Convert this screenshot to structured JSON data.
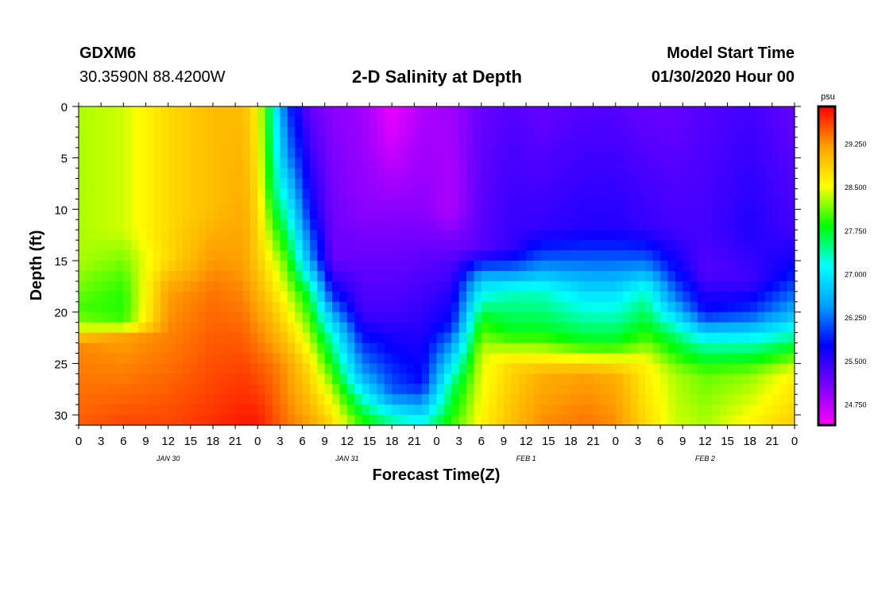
{
  "header": {
    "station_id": "GDXM6",
    "coordinates": "30.3590N 88.4200W",
    "title": "2-D Salinity at Depth",
    "model_start_label": "Model Start Time",
    "model_start_value": "01/30/2020 Hour 00"
  },
  "chart_data": {
    "type": "heatmap",
    "title": "2-D Salinity at Depth",
    "xlabel": "Forecast Time(Z)",
    "ylabel": "Depth (ft)",
    "x_hours": [
      0,
      96
    ],
    "x_tick_labels": [
      "0",
      "3",
      "6",
      "9",
      "12",
      "15",
      "18",
      "21",
      "0",
      "3",
      "6",
      "9",
      "12",
      "15",
      "18",
      "21",
      "0",
      "3",
      "6",
      "9",
      "12",
      "15",
      "18",
      "21",
      "0",
      "3",
      "6",
      "9",
      "12",
      "15",
      "18",
      "21",
      "0"
    ],
    "date_labels": [
      {
        "hour": 12,
        "text": "JAN 30"
      },
      {
        "hour": 36,
        "text": "JAN 31"
      },
      {
        "hour": 60,
        "text": "FEB 1"
      },
      {
        "hour": 84,
        "text": "FEB 2"
      }
    ],
    "ylim": [
      0,
      31
    ],
    "y_ticks": [
      0,
      5,
      10,
      15,
      20,
      25,
      30
    ],
    "colorbar": {
      "unit": "psu",
      "range": [
        24.4,
        29.9
      ],
      "tick_values": [
        29.25,
        28.5,
        27.75,
        27.0,
        26.25,
        25.5,
        24.75
      ],
      "tick_labels": [
        "29.250",
        "28.500",
        "27.750",
        "27.000",
        "26.250",
        "25.500",
        "24.750"
      ]
    },
    "salinity_profiles": [
      {
        "hour": 0,
        "depth": [
          0,
          15,
          20,
          21.5,
          23,
          31
        ],
        "psu": [
          28.3,
          28.3,
          28.0,
          28.4,
          29.3,
          29.5
        ]
      },
      {
        "hour": 6,
        "depth": [
          0,
          12,
          17,
          19,
          21,
          22.5,
          31
        ],
        "psu": [
          28.4,
          28.4,
          28.0,
          27.9,
          28.0,
          29.2,
          29.6
        ]
      },
      {
        "hour": 12,
        "depth": [
          0,
          15,
          18,
          31
        ],
        "psu": [
          28.8,
          28.8,
          29.2,
          29.6
        ]
      },
      {
        "hour": 18,
        "depth": [
          0,
          10,
          18,
          31
        ],
        "psu": [
          29.0,
          29.0,
          29.4,
          29.7
        ]
      },
      {
        "hour": 22,
        "depth": [
          0,
          15,
          25,
          31
        ],
        "psu": [
          29.0,
          29.2,
          29.6,
          29.8
        ]
      },
      {
        "hour": 24,
        "depth": [
          0,
          15,
          25,
          31
        ],
        "psu": [
          28.6,
          28.9,
          29.5,
          29.8
        ]
      },
      {
        "hour": 26,
        "depth": [
          0,
          8,
          15,
          25,
          31
        ],
        "psu": [
          27.3,
          27.6,
          28.5,
          29.4,
          29.6
        ]
      },
      {
        "hour": 28,
        "depth": [
          0,
          5,
          15,
          25,
          31
        ],
        "psu": [
          26.0,
          26.4,
          28.0,
          29.2,
          29.4
        ]
      },
      {
        "hour": 31,
        "depth": [
          0,
          10,
          15,
          18,
          25,
          31
        ],
        "psu": [
          25.2,
          25.8,
          26.5,
          27.6,
          28.7,
          29.2
        ]
      },
      {
        "hour": 34,
        "depth": [
          0,
          15,
          18,
          22,
          28,
          31
        ],
        "psu": [
          25.0,
          25.2,
          25.8,
          27.2,
          28.4,
          28.8
        ]
      },
      {
        "hour": 38,
        "depth": [
          0,
          10,
          20,
          26,
          29,
          31
        ],
        "psu": [
          24.9,
          25.0,
          25.4,
          26.5,
          27.5,
          28.0
        ]
      },
      {
        "hour": 42,
        "depth": [
          0,
          3,
          10,
          20,
          28,
          30,
          31
        ],
        "psu": [
          24.5,
          24.6,
          25.0,
          25.4,
          26.2,
          27.2,
          27.5
        ]
      },
      {
        "hour": 46,
        "depth": [
          0,
          10,
          20,
          27,
          29,
          31
        ],
        "psu": [
          24.8,
          25.0,
          25.5,
          25.8,
          26.5,
          27.3
        ]
      },
      {
        "hour": 50,
        "depth": [
          0,
          10,
          15,
          21,
          27,
          31
        ],
        "psu": [
          24.9,
          24.8,
          25.3,
          25.8,
          27.5,
          28.0
        ]
      },
      {
        "hour": 54,
        "depth": [
          0,
          14,
          17,
          21,
          24,
          31
        ],
        "psu": [
          25.2,
          25.3,
          26.8,
          27.9,
          28.4,
          28.6
        ]
      },
      {
        "hour": 58,
        "depth": [
          0,
          14,
          16,
          18,
          22,
          25,
          31
        ],
        "psu": [
          25.3,
          25.5,
          26.3,
          27.3,
          27.8,
          28.8,
          29.0
        ]
      },
      {
        "hour": 62,
        "depth": [
          0,
          12,
          15,
          18,
          22,
          26,
          31
        ],
        "psu": [
          25.2,
          25.5,
          26.2,
          27.3,
          27.8,
          29.1,
          29.3
        ]
      },
      {
        "hour": 68,
        "depth": [
          0,
          12,
          15,
          19,
          23,
          26,
          31
        ],
        "psu": [
          25.3,
          25.6,
          26.2,
          27.1,
          27.8,
          29.2,
          29.4
        ]
      },
      {
        "hour": 72,
        "depth": [
          0,
          12,
          15,
          19,
          23,
          26,
          31
        ],
        "psu": [
          25.3,
          25.6,
          26.2,
          27.1,
          27.8,
          29.1,
          29.3
        ]
      },
      {
        "hour": 76,
        "depth": [
          0,
          12,
          15,
          18,
          22,
          25,
          31
        ],
        "psu": [
          25.2,
          25.5,
          26.2,
          27.3,
          27.9,
          28.6,
          28.8
        ]
      },
      {
        "hour": 80,
        "depth": [
          0,
          12,
          16,
          19,
          22,
          26,
          31
        ],
        "psu": [
          25.2,
          25.4,
          25.8,
          26.4,
          27.5,
          28.3,
          28.4
        ]
      },
      {
        "hour": 84,
        "depth": [
          0,
          12,
          16,
          20,
          23,
          26,
          31
        ],
        "psu": [
          25.3,
          25.4,
          25.3,
          25.8,
          27.3,
          28.1,
          28.3
        ]
      },
      {
        "hour": 90,
        "depth": [
          0,
          12,
          17,
          20,
          23,
          26,
          31
        ],
        "psu": [
          25.4,
          25.6,
          25.4,
          26.0,
          27.3,
          28.2,
          28.6
        ]
      },
      {
        "hour": 96,
        "depth": [
          0,
          12,
          16,
          20,
          23,
          26,
          31
        ],
        "psu": [
          25.2,
          25.4,
          25.8,
          26.6,
          27.6,
          28.6,
          28.9
        ]
      }
    ]
  },
  "colors": {
    "palette": [
      "#ff00ff",
      "#7a00ff",
      "#0000ff",
      "#00a0ff",
      "#00ffff",
      "#00ff00",
      "#ffff00",
      "#ffa000",
      "#ff0000"
    ]
  }
}
